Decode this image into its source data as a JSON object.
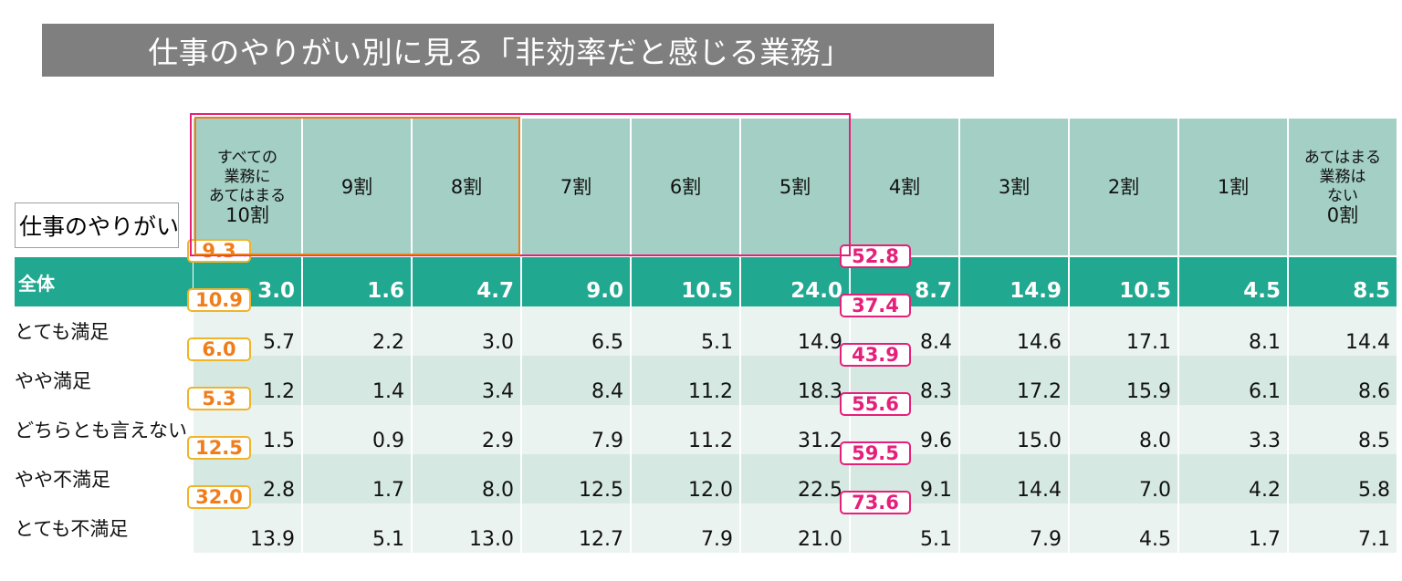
{
  "title": "仕事のやりがい別に見る「非効率だと感じる業務」",
  "row_axis_label": "仕事のやりがい",
  "chart_data": {
    "type": "table",
    "columns": [
      {
        "lines": [
          "すべての",
          "業務に",
          "あてはまる",
          "10割"
        ]
      },
      {
        "lines": [
          "9割"
        ]
      },
      {
        "lines": [
          "8割"
        ]
      },
      {
        "lines": [
          "7割"
        ]
      },
      {
        "lines": [
          "6割"
        ]
      },
      {
        "lines": [
          "5割"
        ]
      },
      {
        "lines": [
          "4割"
        ]
      },
      {
        "lines": [
          "3割"
        ]
      },
      {
        "lines": [
          "2割"
        ]
      },
      {
        "lines": [
          "1割"
        ]
      },
      {
        "lines": [
          "あてはまる",
          "業務は",
          "ない",
          "0割"
        ]
      }
    ],
    "rows": [
      {
        "label": "全体",
        "values": [
          "3.0",
          "1.6",
          "4.7",
          "9.0",
          "10.5",
          "24.0",
          "8.7",
          "14.9",
          "10.5",
          "4.5",
          "8.5"
        ],
        "sum_10_to_8": "9.3",
        "sum_10_to_5": "52.8"
      },
      {
        "label": "とても満足",
        "values": [
          "5.7",
          "2.2",
          "3.0",
          "6.5",
          "5.1",
          "14.9",
          "8.4",
          "14.6",
          "17.1",
          "8.1",
          "14.4"
        ],
        "sum_10_to_8": "10.9",
        "sum_10_to_5": "37.4"
      },
      {
        "label": "やや満足",
        "values": [
          "1.2",
          "1.4",
          "3.4",
          "8.4",
          "11.2",
          "18.3",
          "8.3",
          "17.2",
          "15.9",
          "6.1",
          "8.6"
        ],
        "sum_10_to_8": "6.0",
        "sum_10_to_5": "43.9"
      },
      {
        "label": "どちらとも言えない",
        "values": [
          "1.5",
          "0.9",
          "2.9",
          "7.9",
          "11.2",
          "31.2",
          "9.6",
          "15.0",
          "8.0",
          "3.3",
          "8.5"
        ],
        "sum_10_to_8": "5.3",
        "sum_10_to_5": "55.6"
      },
      {
        "label": "やや不満足",
        "values": [
          "2.8",
          "1.7",
          "8.0",
          "12.5",
          "12.0",
          "22.5",
          "9.1",
          "14.4",
          "7.0",
          "4.2",
          "5.8"
        ],
        "sum_10_to_8": "12.5",
        "sum_10_to_5": "59.5"
      },
      {
        "label": "とても不満足",
        "values": [
          "13.9",
          "5.1",
          "13.0",
          "12.7",
          "7.9",
          "21.0",
          "5.1",
          "7.9",
          "4.5",
          "1.7",
          "7.1"
        ],
        "sum_10_to_8": "32.0",
        "sum_10_to_5": "73.6"
      }
    ]
  },
  "colors": {
    "title_bg": "#7f7f7f",
    "header_bg": "#a3cfc4",
    "total_row_bg": "#20a891",
    "row_band_light": "#eaf3f0",
    "row_band_mid": "#d6e8e2",
    "highlight_10_to_8": "#f07d1a",
    "highlight_10_to_5": "#e5207a"
  }
}
